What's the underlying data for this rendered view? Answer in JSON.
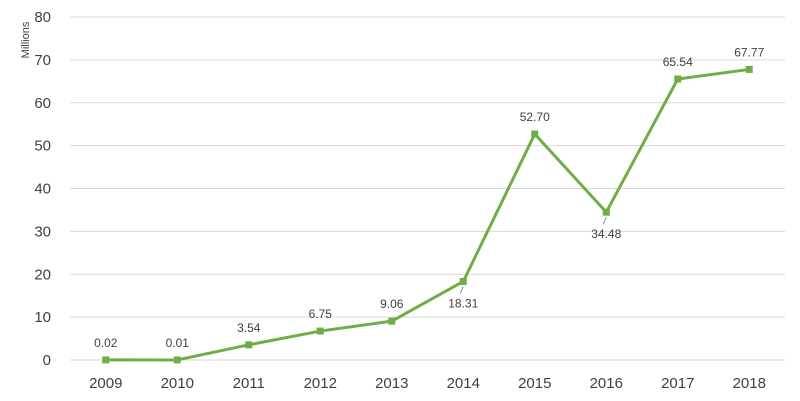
{
  "chart_data": {
    "type": "line",
    "title": "",
    "xlabel": "",
    "ylabel": "Millions",
    "ylim": [
      0,
      80
    ],
    "yticks": [
      0,
      10,
      20,
      30,
      40,
      50,
      60,
      70,
      80
    ],
    "grid": true,
    "legend": "none",
    "categories": [
      "2009",
      "2010",
      "2011",
      "2012",
      "2013",
      "2014",
      "2015",
      "2016",
      "2017",
      "2018"
    ],
    "series": [
      {
        "color": "#70ad47",
        "marker": "square",
        "values": [
          0.02,
          0.01,
          3.54,
          6.75,
          9.06,
          18.31,
          52.7,
          34.48,
          65.54,
          67.77
        ],
        "labels": [
          "0.02",
          "0.01",
          "3.54",
          "6.75",
          "9.06",
          "18.31",
          "52.70",
          "34.48",
          "65.54",
          "67.77"
        ],
        "label_positions": [
          "above",
          "above",
          "above",
          "above",
          "above",
          "below",
          "above",
          "below",
          "above",
          "above"
        ]
      }
    ]
  }
}
